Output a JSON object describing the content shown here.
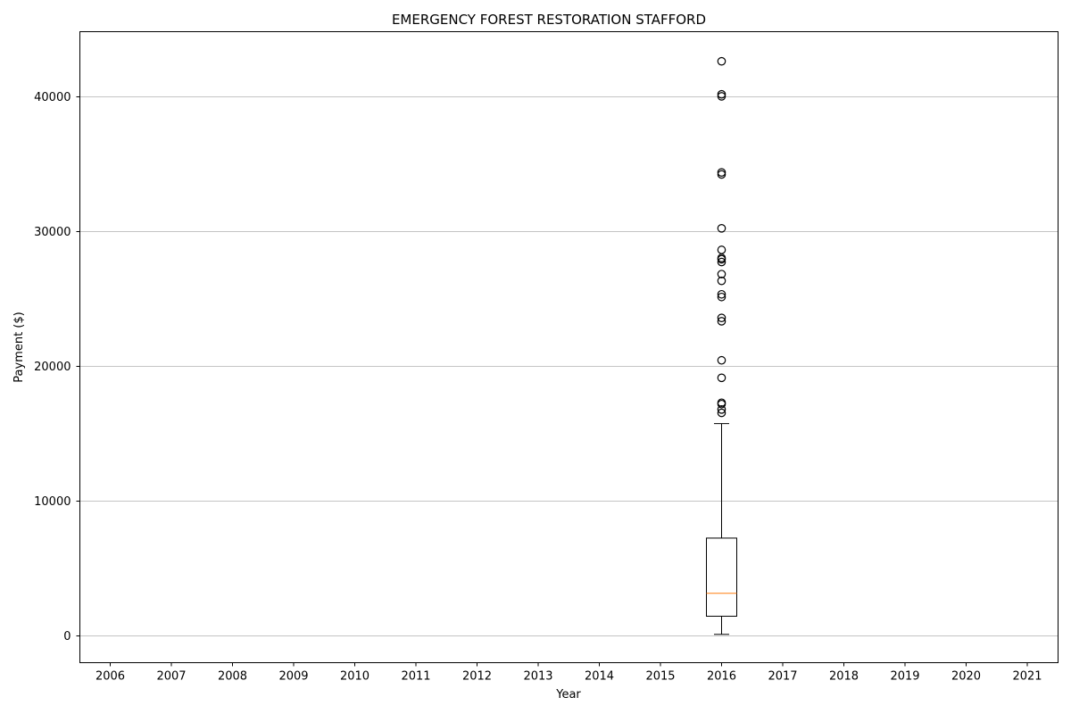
{
  "chart_data": {
    "type": "box",
    "title": "EMERGENCY FOREST RESTORATION STAFFORD",
    "xlabel": "Year",
    "ylabel": "Payment ($)",
    "categories": [
      "2006",
      "2007",
      "2008",
      "2009",
      "2010",
      "2011",
      "2012",
      "2013",
      "2014",
      "2015",
      "2016",
      "2017",
      "2018",
      "2019",
      "2020",
      "2021"
    ],
    "ylim": [
      -2050,
      44800
    ],
    "yticks": [
      0,
      10000,
      20000,
      30000,
      40000
    ],
    "grid": "y",
    "boxes": [
      {
        "category": "2016",
        "whisker_low": 50,
        "q1": 1400,
        "median": 3100,
        "q3": 7200,
        "whisker_high": 15700,
        "outliers": [
          16500,
          16750,
          17150,
          17250,
          19100,
          20400,
          23300,
          23550,
          25100,
          25300,
          26300,
          26800,
          27700,
          27900,
          28000,
          28600,
          30200,
          34200,
          34350,
          40000,
          40150,
          42600
        ]
      }
    ],
    "colors": {
      "box": "#000000",
      "median": "#ff7f0e",
      "grid": "#b0b0b0"
    }
  }
}
